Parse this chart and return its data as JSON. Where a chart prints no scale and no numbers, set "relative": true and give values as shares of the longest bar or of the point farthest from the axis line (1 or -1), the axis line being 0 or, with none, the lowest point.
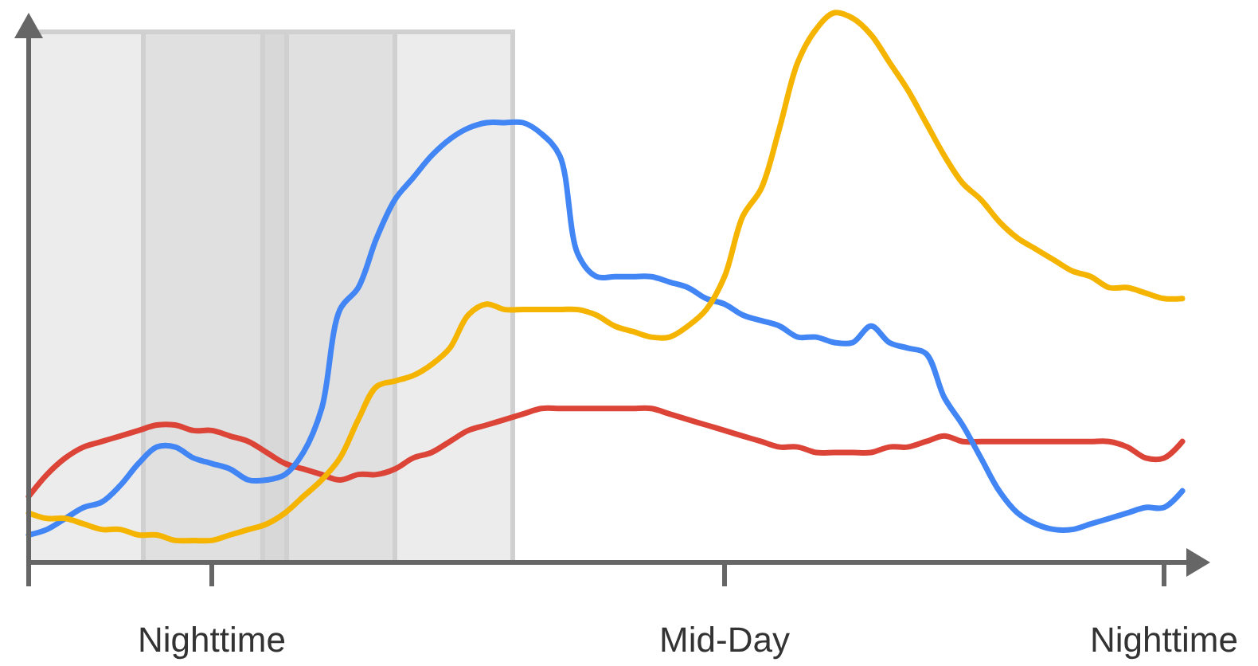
{
  "chart_data": {
    "type": "line",
    "relative": true,
    "categories": [
      null,
      null,
      null,
      null,
      null,
      null,
      null,
      null,
      null,
      null,
      "Nighttime",
      null,
      null,
      null,
      null,
      null,
      null,
      null,
      null,
      null,
      null,
      null,
      null,
      null,
      null,
      null,
      null,
      null,
      null,
      null,
      null,
      null,
      null,
      null,
      null,
      null,
      null,
      null,
      "Mid-Day",
      null,
      null,
      null,
      null,
      null,
      null,
      null,
      null,
      null,
      null,
      null,
      null,
      null,
      null,
      null,
      null,
      null,
      null,
      null,
      null,
      null,
      null,
      null,
      "Nighttime",
      null
    ],
    "series": [
      {
        "color": "#db4437",
        "values": [
          0.12,
          0.16,
          0.19,
          0.21,
          0.22,
          0.23,
          0.24,
          0.25,
          0.25,
          0.24,
          0.24,
          0.23,
          0.22,
          0.2,
          0.18,
          0.17,
          0.16,
          0.15,
          0.16,
          0.16,
          0.17,
          0.19,
          0.2,
          0.22,
          0.24,
          0.25,
          0.26,
          0.27,
          0.28,
          0.28,
          0.28,
          0.28,
          0.28,
          0.28,
          0.28,
          0.27,
          0.26,
          0.25,
          0.24,
          0.23,
          0.22,
          0.21,
          0.21,
          0.2,
          0.2,
          0.2,
          0.2,
          0.21,
          0.21,
          0.22,
          0.23,
          0.22,
          0.22,
          0.22,
          0.22,
          0.22,
          0.22,
          0.22,
          0.22,
          0.22,
          0.21,
          0.19,
          0.19,
          0.22
        ]
      },
      {
        "color": "#4285f4",
        "values": [
          0.05,
          0.06,
          0.08,
          0.1,
          0.11,
          0.14,
          0.18,
          0.21,
          0.21,
          0.19,
          0.18,
          0.17,
          0.15,
          0.15,
          0.16,
          0.2,
          0.28,
          0.46,
          0.5,
          0.59,
          0.66,
          0.7,
          0.74,
          0.77,
          0.79,
          0.8,
          0.8,
          0.8,
          0.78,
          0.74,
          0.56,
          0.52,
          0.52,
          0.52,
          0.52,
          0.51,
          0.5,
          0.48,
          0.47,
          0.45,
          0.44,
          0.43,
          0.41,
          0.41,
          0.4,
          0.4,
          0.43,
          0.4,
          0.39,
          0.38,
          0.3,
          0.25,
          0.19,
          0.13,
          0.09,
          0.07,
          0.06,
          0.06,
          0.07,
          0.08,
          0.09,
          0.1,
          0.1,
          0.13
        ]
      },
      {
        "color": "#f4b400",
        "values": [
          0.09,
          0.08,
          0.08,
          0.07,
          0.06,
          0.06,
          0.05,
          0.05,
          0.04,
          0.04,
          0.04,
          0.05,
          0.06,
          0.07,
          0.09,
          0.12,
          0.15,
          0.19,
          0.26,
          0.32,
          0.33,
          0.34,
          0.36,
          0.39,
          0.45,
          0.47,
          0.46,
          0.46,
          0.46,
          0.46,
          0.46,
          0.45,
          0.43,
          0.42,
          0.41,
          0.41,
          0.43,
          0.46,
          0.52,
          0.63,
          0.68,
          0.79,
          0.91,
          0.97,
          1,
          0.99,
          0.96,
          0.91,
          0.86,
          0.8,
          0.74,
          0.69,
          0.66,
          0.62,
          0.59,
          0.57,
          0.55,
          0.53,
          0.52,
          0.5,
          0.5,
          0.49,
          0.48,
          0.48
        ]
      }
    ]
  }
}
